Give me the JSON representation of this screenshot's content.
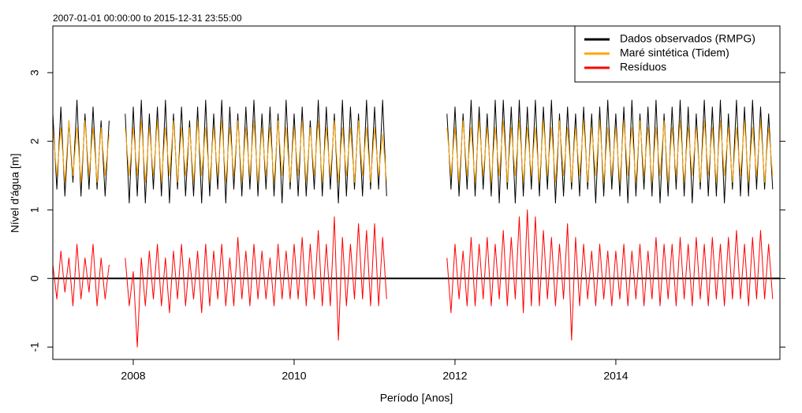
{
  "chart_data": {
    "type": "line",
    "title": "2007-01-01 00:00:00 to 2015-12-31 23:55:00",
    "x_label": "Período [Anos]",
    "y_label": "Nível d'água [m]",
    "xlim": [
      2007.0,
      2016.04
    ],
    "ylim": [
      -1.18,
      3.68
    ],
    "xticks": [
      2008,
      2010,
      2012,
      2014
    ],
    "yticks": [
      -1,
      0,
      1,
      2,
      3
    ],
    "reference_line": 0,
    "legend": "top-right",
    "x": [
      2007.0,
      2007.05,
      2007.1,
      2007.15,
      2007.2,
      2007.25,
      2007.3,
      2007.35,
      2007.4,
      2007.45,
      2007.5,
      2007.55,
      2007.6,
      2007.65,
      2007.7,
      2007.75,
      2007.8,
      2007.85,
      2007.9,
      2007.95,
      2008.0,
      2008.05,
      2008.1,
      2008.15,
      2008.2,
      2008.25,
      2008.3,
      2008.35,
      2008.4,
      2008.45,
      2008.5,
      2008.55,
      2008.6,
      2008.65,
      2008.7,
      2008.75,
      2008.8,
      2008.85,
      2008.9,
      2008.95,
      2009.0,
      2009.05,
      2009.1,
      2009.15,
      2009.2,
      2009.25,
      2009.3,
      2009.35,
      2009.4,
      2009.45,
      2009.5,
      2009.55,
      2009.6,
      2009.65,
      2009.7,
      2009.75,
      2009.8,
      2009.85,
      2009.9,
      2009.95,
      2010.0,
      2010.05,
      2010.1,
      2010.15,
      2010.2,
      2010.25,
      2010.3,
      2010.35,
      2010.4,
      2010.45,
      2010.5,
      2010.55,
      2010.6,
      2010.65,
      2010.7,
      2010.75,
      2010.8,
      2010.85,
      2010.9,
      2010.95,
      2011.0,
      2011.05,
      2011.1,
      2011.15,
      2011.2,
      2011.25,
      2011.3,
      2011.35,
      2011.4,
      2011.45,
      2011.5,
      2011.55,
      2011.6,
      2011.65,
      2011.7,
      2011.75,
      2011.8,
      2011.85,
      2011.9,
      2011.95,
      2012.0,
      2012.05,
      2012.1,
      2012.15,
      2012.2,
      2012.25,
      2012.3,
      2012.35,
      2012.4,
      2012.45,
      2012.5,
      2012.55,
      2012.6,
      2012.65,
      2012.7,
      2012.75,
      2012.8,
      2012.85,
      2012.9,
      2012.95,
      2013.0,
      2013.05,
      2013.1,
      2013.15,
      2013.2,
      2013.25,
      2013.3,
      2013.35,
      2013.4,
      2013.45,
      2013.5,
      2013.55,
      2013.6,
      2013.65,
      2013.7,
      2013.75,
      2013.8,
      2013.85,
      2013.9,
      2013.95,
      2014.0,
      2014.05,
      2014.1,
      2014.15,
      2014.2,
      2014.25,
      2014.3,
      2014.35,
      2014.4,
      2014.45,
      2014.5,
      2014.55,
      2014.6,
      2014.65,
      2014.7,
      2014.75,
      2014.8,
      2014.85,
      2014.9,
      2014.95,
      2015.0,
      2015.05,
      2015.1,
      2015.15,
      2015.2,
      2015.25,
      2015.3,
      2015.35,
      2015.4,
      2015.45,
      2015.5,
      2015.55,
      2015.6,
      2015.65,
      2015.7,
      2015.75,
      2015.8,
      2015.85,
      2015.9,
      2015.95
    ],
    "series": [
      {
        "name": "Dados observados (RMPG)",
        "color": "#000000",
        "values": [
          2.4,
          1.3,
          2.5,
          1.2,
          2.3,
          1.4,
          2.6,
          1.2,
          2.4,
          1.3,
          2.5,
          1.3,
          2.3,
          1.2,
          2.3,
          null,
          null,
          null,
          2.4,
          1.1,
          2.5,
          1.2,
          2.6,
          1.1,
          2.4,
          1.3,
          2.5,
          1.2,
          2.6,
          1.1,
          2.4,
          1.3,
          2.5,
          1.2,
          2.3,
          1.2,
          2.5,
          1.1,
          2.6,
          1.2,
          2.4,
          1.3,
          2.6,
          1.1,
          2.5,
          1.3,
          2.4,
          1.2,
          2.5,
          1.3,
          2.6,
          1.2,
          2.4,
          1.3,
          2.5,
          1.2,
          2.4,
          1.1,
          2.6,
          1.3,
          2.4,
          1.2,
          2.5,
          1.2,
          2.3,
          1.3,
          2.6,
          1.2,
          2.5,
          1.3,
          2.4,
          1.1,
          2.6,
          1.2,
          2.5,
          1.3,
          2.4,
          1.2,
          2.6,
          1.3,
          2.5,
          1.3,
          2.6,
          1.2,
          null,
          null,
          null,
          null,
          null,
          null,
          null,
          null,
          null,
          null,
          null,
          null,
          null,
          null,
          2.4,
          1.3,
          2.5,
          1.2,
          2.4,
          1.3,
          2.6,
          1.2,
          2.5,
          1.3,
          2.4,
          1.2,
          2.6,
          1.1,
          2.6,
          1.3,
          2.5,
          1.1,
          2.6,
          1.2,
          2.5,
          1.3,
          2.6,
          1.2,
          2.5,
          1.3,
          2.6,
          1.1,
          2.4,
          1.2,
          2.5,
          1.3,
          2.4,
          1.2,
          2.5,
          1.3,
          2.4,
          1.1,
          2.5,
          1.2,
          2.6,
          1.3,
          2.4,
          1.2,
          2.5,
          1.1,
          2.6,
          1.2,
          2.4,
          1.3,
          2.5,
          1.2,
          2.6,
          1.1,
          2.4,
          1.2,
          2.5,
          1.3,
          2.6,
          1.2,
          2.5,
          1.1,
          2.4,
          1.3,
          2.6,
          1.2,
          2.5,
          1.2,
          2.6,
          1.1,
          2.4,
          1.3,
          2.6,
          1.2,
          2.5,
          1.2,
          2.6,
          1.3,
          2.5,
          1.3,
          2.4,
          1.3
        ]
      },
      {
        "name": "Maré sintética (Tidem)",
        "color": "#ffa500",
        "values": [
          2.2,
          1.5,
          2.2,
          1.4,
          2.3,
          1.5,
          2.2,
          1.4,
          2.3,
          1.5,
          2.2,
          1.4,
          2.2,
          1.5,
          2.1,
          null,
          null,
          null,
          2.2,
          1.5,
          2.2,
          1.5,
          2.3,
          1.4,
          2.2,
          1.5,
          2.3,
          1.4,
          2.2,
          1.5,
          2.3,
          1.4,
          2.2,
          1.5,
          2.2,
          1.4,
          2.3,
          1.5,
          2.2,
          1.4,
          2.2,
          1.5,
          2.3,
          1.4,
          2.2,
          1.5,
          2.3,
          1.4,
          2.2,
          1.5,
          2.3,
          1.4,
          2.2,
          1.5,
          2.2,
          1.4,
          2.3,
          1.5,
          2.2,
          1.4,
          2.2,
          1.5,
          2.3,
          1.4,
          2.2,
          1.5,
          2.3,
          1.4,
          2.2,
          1.5,
          2.3,
          1.4,
          2.2,
          1.5,
          2.2,
          1.4,
          2.3,
          1.5,
          2.2,
          1.4,
          2.2,
          1.5,
          2.1,
          1.4,
          null,
          null,
          null,
          null,
          null,
          null,
          null,
          null,
          null,
          null,
          null,
          null,
          null,
          null,
          2.2,
          1.5,
          2.2,
          1.4,
          2.3,
          1.5,
          2.2,
          1.4,
          2.3,
          1.5,
          2.2,
          1.4,
          2.2,
          1.5,
          2.3,
          1.4,
          2.2,
          1.5,
          2.3,
          1.4,
          2.2,
          1.5,
          2.2,
          1.4,
          2.3,
          1.5,
          2.2,
          1.4,
          2.3,
          1.5,
          2.2,
          1.4,
          2.2,
          1.5,
          2.3,
          1.4,
          2.2,
          1.5,
          2.3,
          1.4,
          2.2,
          1.5,
          2.2,
          1.4,
          2.3,
          1.5,
          2.2,
          1.4,
          2.3,
          1.5,
          2.2,
          1.4,
          2.2,
          1.5,
          2.3,
          1.4,
          2.2,
          1.5,
          2.3,
          1.4,
          2.2,
          1.5,
          2.2,
          1.4,
          2.3,
          1.5,
          2.2,
          1.4,
          2.3,
          1.5,
          2.2,
          1.4,
          2.2,
          1.5,
          2.3,
          1.4,
          2.2,
          1.5,
          2.3,
          1.4,
          2.2,
          1.5
        ]
      },
      {
        "name": "Resíduos",
        "color": "#ff0000",
        "values": [
          0.2,
          -0.3,
          0.4,
          -0.2,
          0.3,
          -0.4,
          0.5,
          -0.3,
          0.3,
          -0.2,
          0.5,
          -0.4,
          0.3,
          -0.3,
          0.2,
          null,
          null,
          null,
          0.3,
          -0.4,
          0.1,
          -1.0,
          0.3,
          -0.4,
          0.4,
          -0.3,
          0.5,
          -0.4,
          0.3,
          -0.5,
          0.4,
          -0.3,
          0.5,
          -0.4,
          0.3,
          -0.3,
          0.4,
          -0.5,
          0.5,
          -0.4,
          0.4,
          -0.3,
          0.5,
          -0.4,
          0.3,
          -0.4,
          0.6,
          -0.3,
          0.4,
          -0.4,
          0.5,
          -0.3,
          0.4,
          -0.3,
          0.3,
          -0.4,
          0.5,
          -0.3,
          0.4,
          -0.3,
          0.5,
          -0.3,
          0.6,
          -0.4,
          0.5,
          -0.3,
          0.7,
          -0.4,
          0.5,
          -0.4,
          0.9,
          -0.9,
          0.6,
          -0.4,
          0.5,
          -0.3,
          0.8,
          -0.3,
          0.7,
          -0.4,
          0.8,
          -0.4,
          0.6,
          -0.3,
          null,
          null,
          null,
          null,
          null,
          null,
          null,
          null,
          null,
          null,
          null,
          null,
          null,
          null,
          0.3,
          -0.5,
          0.5,
          -0.3,
          0.4,
          -0.4,
          0.6,
          -0.4,
          0.5,
          -0.3,
          0.6,
          -0.4,
          0.5,
          -0.3,
          0.7,
          -0.4,
          0.6,
          -0.3,
          0.9,
          -0.5,
          1.0,
          -0.4,
          0.9,
          -0.4,
          0.7,
          -0.3,
          0.6,
          -0.4,
          0.5,
          -0.3,
          0.8,
          -0.9,
          0.6,
          -0.4,
          0.5,
          -0.3,
          0.4,
          -0.4,
          0.5,
          -0.3,
          0.4,
          -0.4,
          0.4,
          -0.3,
          0.5,
          -0.4,
          0.4,
          -0.3,
          0.5,
          -0.4,
          0.4,
          -0.3,
          0.6,
          -0.4,
          0.5,
          -0.3,
          0.5,
          -0.4,
          0.6,
          -0.3,
          0.5,
          -0.4,
          0.6,
          -0.3,
          0.5,
          -0.4,
          0.6,
          -0.3,
          0.5,
          -0.4,
          0.6,
          -0.3,
          0.7,
          -0.3,
          0.5,
          -0.4,
          0.6,
          -0.3,
          0.7,
          -0.3,
          0.5,
          -0.3
        ]
      }
    ]
  }
}
